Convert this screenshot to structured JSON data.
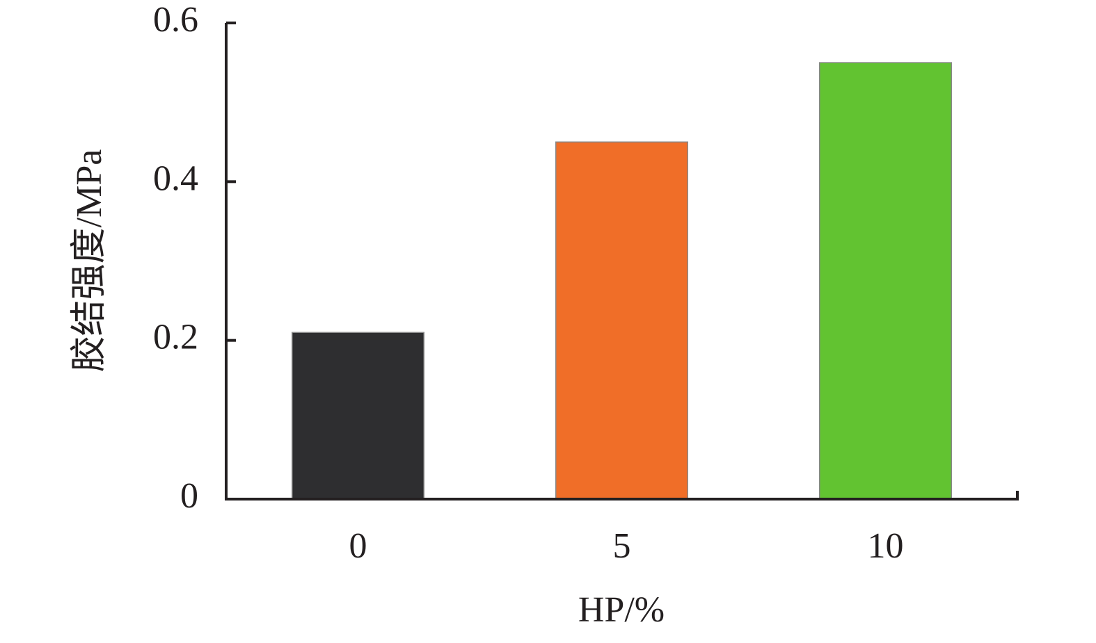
{
  "chart_data": {
    "type": "bar",
    "x_label": "HP/%",
    "y_label": "胶结强度/MPa",
    "categories": [
      "0",
      "5",
      "10"
    ],
    "values": [
      0.21,
      0.45,
      0.55
    ],
    "colors": [
      "#2e2e30",
      "#f06e28",
      "#62c331"
    ],
    "ylim": [
      0,
      0.6
    ],
    "yticks": [
      0,
      0.2,
      0.4,
      0.6
    ],
    "grid": false
  }
}
